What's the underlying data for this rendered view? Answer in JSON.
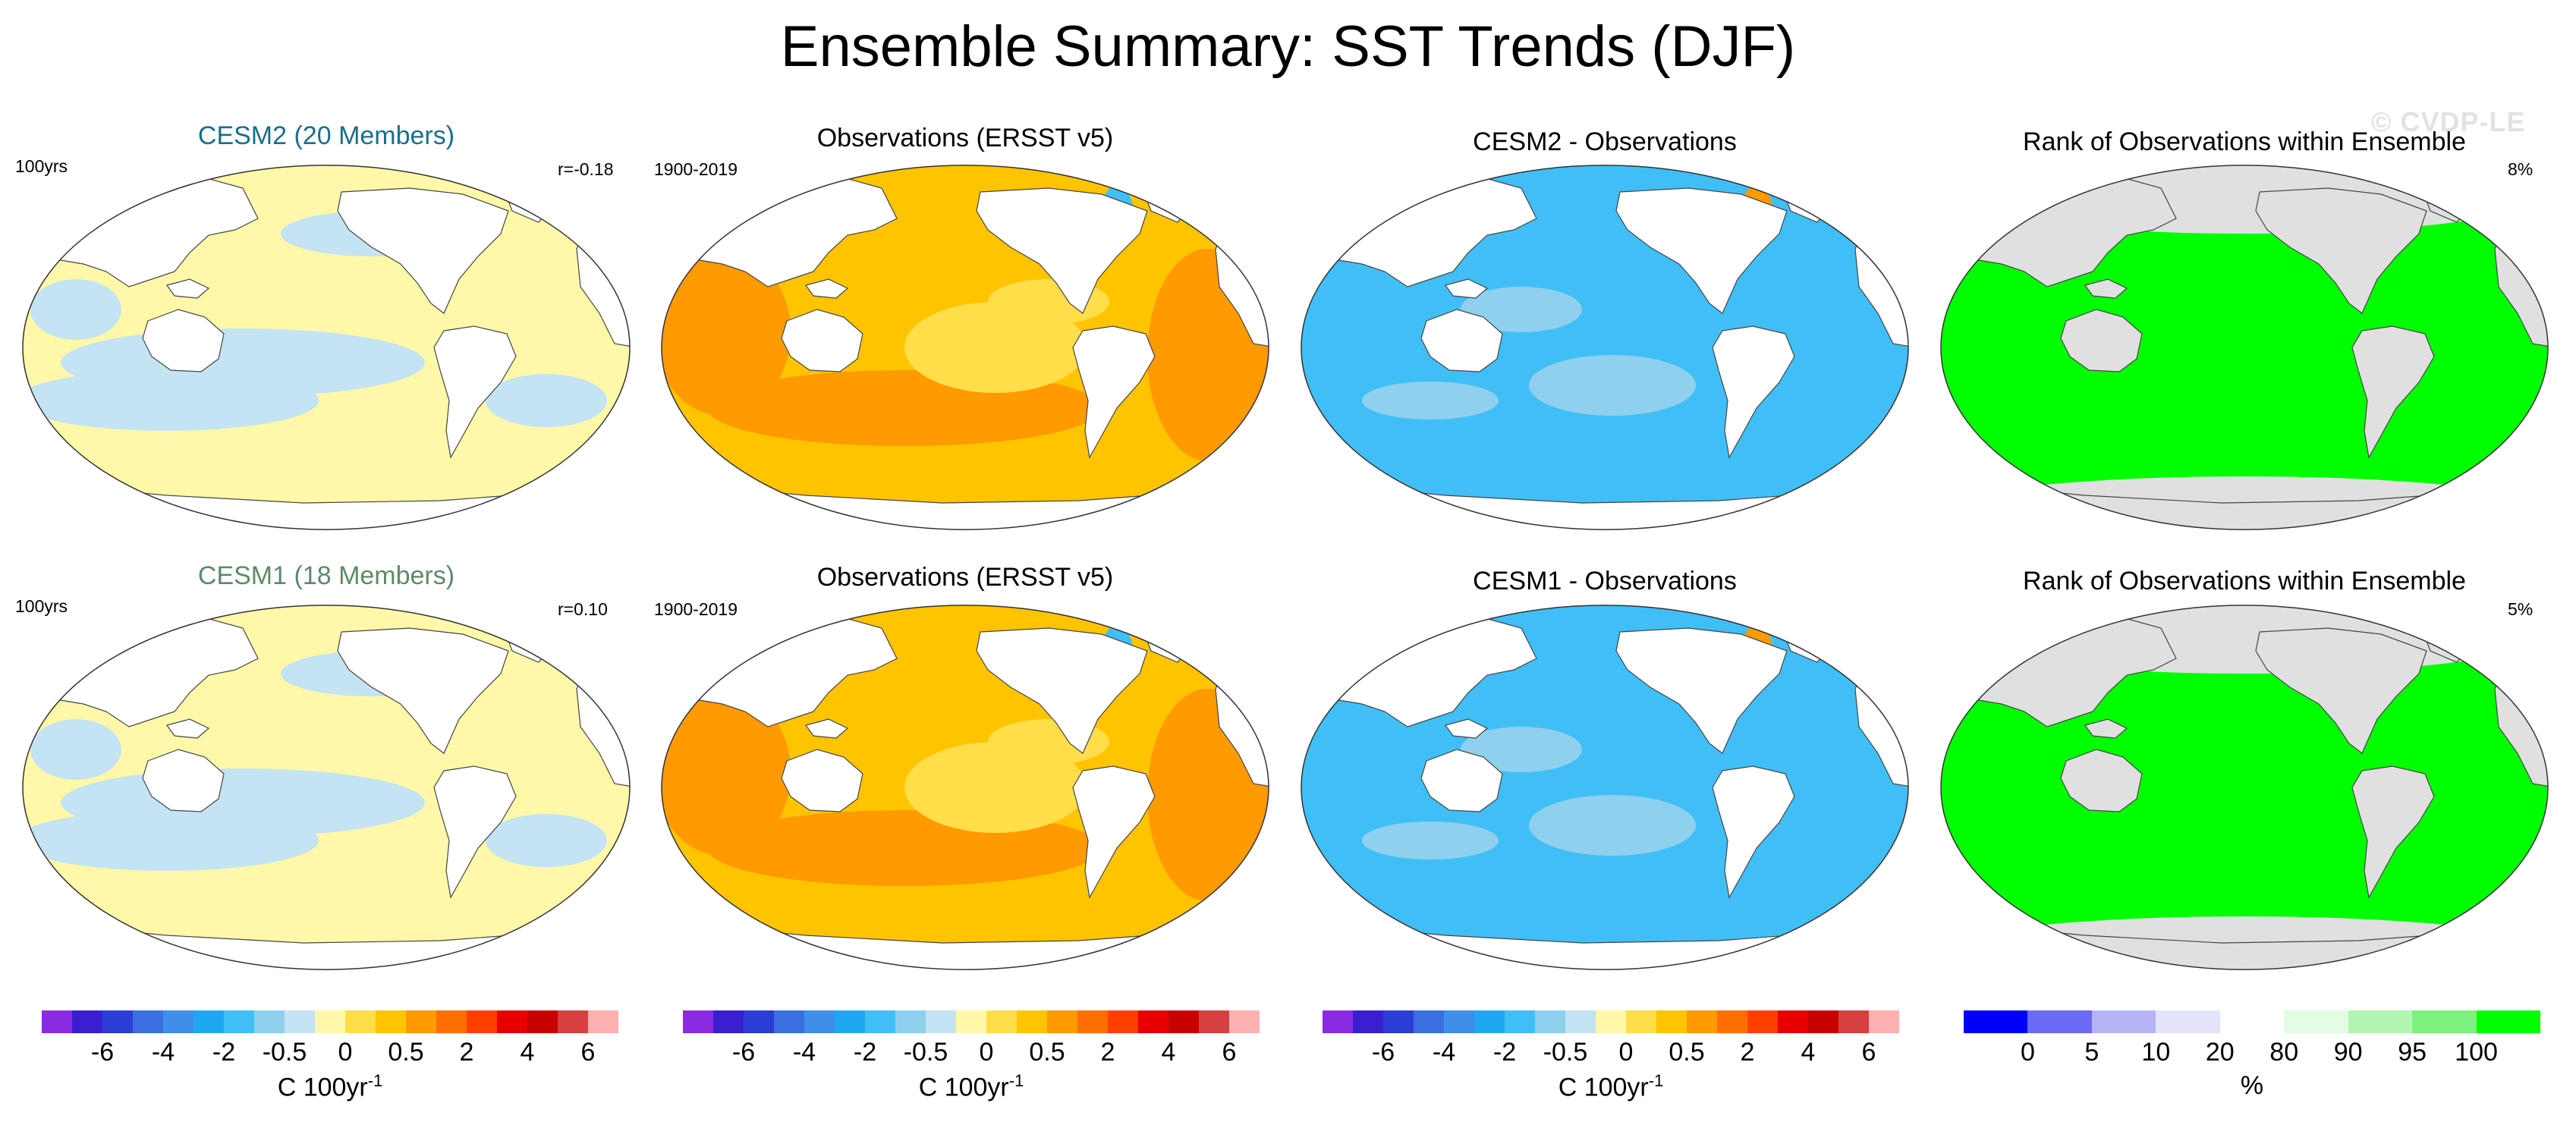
{
  "title": "Ensemble Summary: SST Trends (DJF)",
  "watermark": "© CVDP-LE",
  "panels": [
    {
      "id": "r1c1",
      "title": "CESM2 (20 Members)",
      "title_color": "#1a6f8a",
      "left_label": "100yrs",
      "right_label": "r=-0.18",
      "kind": "model"
    },
    {
      "id": "r1c2",
      "title": "Observations (ERSST v5)",
      "title_color": "#000000",
      "left_label": "1900-2019",
      "right_label": "",
      "kind": "obs"
    },
    {
      "id": "r1c3",
      "title": "CESM2 - Observations",
      "title_color": "#000000",
      "left_label": "",
      "right_label": "",
      "kind": "diff"
    },
    {
      "id": "r1c4",
      "title": "Rank of Observations within Ensemble",
      "title_color": "#000000",
      "left_label": "",
      "right_label": "8%",
      "kind": "rank"
    },
    {
      "id": "r2c1",
      "title": "CESM1 (18 Members)",
      "title_color": "#5d8a6a",
      "left_label": "100yrs",
      "right_label": "r=0.10",
      "kind": "model"
    },
    {
      "id": "r2c2",
      "title": "Observations (ERSST v5)",
      "title_color": "#000000",
      "left_label": "1900-2019",
      "right_label": "",
      "kind": "obs"
    },
    {
      "id": "r2c3",
      "title": "CESM1 - Observations",
      "title_color": "#000000",
      "left_label": "",
      "right_label": "",
      "kind": "diff"
    },
    {
      "id": "r2c4",
      "title": "Rank of Observations within Ensemble",
      "title_color": "#000000",
      "left_label": "",
      "right_label": "5%",
      "kind": "rank"
    }
  ],
  "colorbars": {
    "trend": {
      "colors": [
        "#8a2be2",
        "#3a1fd0",
        "#2a3ed6",
        "#3b6fe0",
        "#3f8ee8",
        "#1fa8f0",
        "#40bff6",
        "#8fd0ef",
        "#c4e3f3",
        "#fff8a8",
        "#ffde4a",
        "#ffc400",
        "#ff9a00",
        "#ff6e00",
        "#ff3f00",
        "#e80000",
        "#c80000",
        "#d64040",
        "#ffb0b0"
      ],
      "ticks": [
        "-6",
        "-4",
        "-2",
        "-0.5",
        "0",
        "0.5",
        "2",
        "4",
        "6"
      ],
      "unit": "C 100yr",
      "unit_sup": "-1"
    },
    "rank": {
      "colors": [
        "#0000ff",
        "#6a6af5",
        "#b4b4f5",
        "#e4e4fc",
        "#ffffff",
        "#e4fce4",
        "#b4f5b4",
        "#7df07d",
        "#00ff00"
      ],
      "ticks": [
        "0",
        "5",
        "10",
        "20",
        "80",
        "90",
        "95",
        "100"
      ],
      "unit": "%"
    }
  },
  "colors": {
    "model_fill": "#fff8a8",
    "model_cool": "#c4e3f3",
    "obs_fill": "#ffc400",
    "obs_warm": "#ff9a00",
    "obs_light": "#ffde4a",
    "diff_fill": "#40bff6",
    "diff_light": "#8fd0ef",
    "rank_fill": "#00ff00",
    "rank_bg": "#e0e0e0",
    "land": "#ffffff"
  },
  "chart_data": [
    {
      "type": "heatmap",
      "title": "CESM2 (20 Members)",
      "variable": "SST trend (DJF)",
      "units": "C 100yr-1",
      "period_label": "100yrs",
      "pattern_correlation": -0.18,
      "levels": [
        -6,
        -4,
        -2,
        -0.5,
        0,
        0.5,
        2,
        4,
        6
      ]
    },
    {
      "type": "heatmap",
      "title": "Observations (ERSST v5)",
      "variable": "SST trend (DJF)",
      "units": "C 100yr-1",
      "period": "1900-2019",
      "levels": [
        -6,
        -4,
        -2,
        -0.5,
        0,
        0.5,
        2,
        4,
        6
      ]
    },
    {
      "type": "heatmap",
      "title": "CESM2 - Observations",
      "variable": "SST trend difference (DJF)",
      "units": "C 100yr-1",
      "levels": [
        -6,
        -4,
        -2,
        -0.5,
        0,
        0.5,
        2,
        4,
        6
      ]
    },
    {
      "type": "heatmap",
      "title": "Rank of Observations within Ensemble",
      "units": "%",
      "area_outside_percent": 8,
      "levels": [
        0,
        5,
        10,
        20,
        80,
        90,
        95,
        100
      ]
    },
    {
      "type": "heatmap",
      "title": "CESM1 (18 Members)",
      "variable": "SST trend (DJF)",
      "units": "C 100yr-1",
      "period_label": "100yrs",
      "pattern_correlation": 0.1,
      "levels": [
        -6,
        -4,
        -2,
        -0.5,
        0,
        0.5,
        2,
        4,
        6
      ]
    },
    {
      "type": "heatmap",
      "title": "Observations (ERSST v5)",
      "variable": "SST trend (DJF)",
      "units": "C 100yr-1",
      "period": "1900-2019",
      "levels": [
        -6,
        -4,
        -2,
        -0.5,
        0,
        0.5,
        2,
        4,
        6
      ]
    },
    {
      "type": "heatmap",
      "title": "CESM1 - Observations",
      "variable": "SST trend difference (DJF)",
      "units": "C 100yr-1",
      "levels": [
        -6,
        -4,
        -2,
        -0.5,
        0,
        0.5,
        2,
        4,
        6
      ]
    },
    {
      "type": "heatmap",
      "title": "Rank of Observations within Ensemble",
      "units": "%",
      "area_outside_percent": 5,
      "levels": [
        0,
        5,
        10,
        20,
        80,
        90,
        95,
        100
      ]
    }
  ]
}
